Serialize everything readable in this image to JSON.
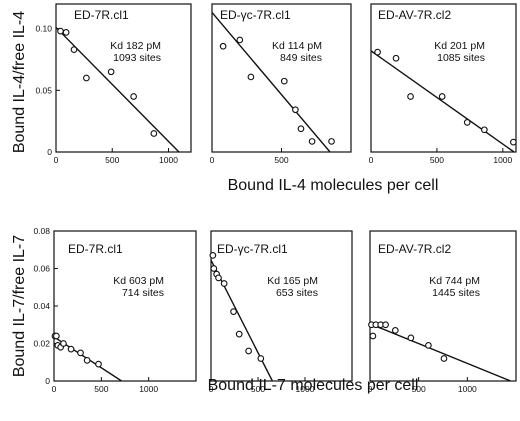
{
  "rows": [
    {
      "ylabel": "Bound IL-4/free IL-4",
      "xlabel": "Bound IL-4 molecules per cell"
    },
    {
      "ylabel": "Bound IL-7/free IL-7",
      "xlabel": "Bound IL-7 molecules per cell"
    }
  ],
  "chart_data": [
    {
      "type": "scatter",
      "title": "ED-7R.cl1",
      "annotation": [
        "Kd 182 pM",
        "1093 sites"
      ],
      "xlim": [
        0,
        1200
      ],
      "ylim": [
        0,
        0.12
      ],
      "xticks": [
        0,
        500,
        1000
      ],
      "yticks": [
        0,
        0.05,
        0.1
      ],
      "ytick_labels": [
        "0",
        "0.05",
        "0.10"
      ],
      "points": [
        [
          40,
          0.098
        ],
        [
          90,
          0.097
        ],
        [
          160,
          0.083
        ],
        [
          270,
          0.06
        ],
        [
          490,
          0.065
        ],
        [
          690,
          0.045
        ],
        [
          870,
          0.015
        ]
      ],
      "fit": [
        [
          0,
          0.101
        ],
        [
          1093,
          0
        ]
      ]
    },
    {
      "type": "scatter",
      "title": "ED-γc-7R.cl1",
      "annotation": [
        "Kd 114 pM",
        "849 sites"
      ],
      "xlim": [
        0,
        1000
      ],
      "ylim": [
        0,
        0.14
      ],
      "xticks": [
        0,
        500
      ],
      "yticks": [],
      "ytick_labels": [],
      "points": [
        [
          80,
          0.1
        ],
        [
          200,
          0.106
        ],
        [
          280,
          0.071
        ],
        [
          520,
          0.067
        ],
        [
          600,
          0.04
        ],
        [
          640,
          0.022
        ],
        [
          720,
          0.01
        ],
        [
          860,
          0.01
        ]
      ],
      "fit": [
        [
          0,
          0.132
        ],
        [
          849,
          0
        ]
      ]
    },
    {
      "type": "scatter",
      "title": "ED-AV-7R.cl2",
      "annotation": [
        "Kd 201 pM",
        "1085 sites"
      ],
      "xlim": [
        0,
        1100
      ],
      "ylim": [
        0,
        0.12
      ],
      "xticks": [
        0,
        500,
        1000
      ],
      "yticks": [],
      "ytick_labels": [],
      "points": [
        [
          50,
          0.081
        ],
        [
          190,
          0.076
        ],
        [
          300,
          0.045
        ],
        [
          540,
          0.045
        ],
        [
          730,
          0.024
        ],
        [
          860,
          0.018
        ],
        [
          1080,
          0.008
        ]
      ],
      "fit": [
        [
          0,
          0.082
        ],
        [
          1085,
          0
        ]
      ]
    },
    {
      "type": "scatter",
      "title": "ED-7R.cl1",
      "annotation": [
        "Kd 603 pM",
        "714 sites"
      ],
      "xlim": [
        0,
        1500
      ],
      "ylim": [
        0,
        0.08
      ],
      "xticks": [
        0,
        500,
        1000
      ],
      "yticks": [
        0,
        0.02,
        0.04,
        0.06,
        0.08
      ],
      "ytick_labels": [
        "0",
        "0.02",
        "0.04",
        "0.06",
        "0.08"
      ],
      "points": [
        [
          10,
          0.024
        ],
        [
          25,
          0.024
        ],
        [
          40,
          0.019
        ],
        [
          70,
          0.018
        ],
        [
          100,
          0.02
        ],
        [
          180,
          0.017
        ],
        [
          280,
          0.015
        ],
        [
          350,
          0.011
        ],
        [
          470,
          0.009
        ]
      ],
      "fit": [
        [
          0,
          0.0235
        ],
        [
          714,
          0
        ]
      ]
    },
    {
      "type": "scatter",
      "title": "ED-γc-7R.cl1",
      "annotation": [
        "Kd 165 pM",
        "653 sites"
      ],
      "xlim": [
        0,
        1500
      ],
      "ylim": [
        0,
        0.08
      ],
      "xticks": [
        0,
        500,
        1000
      ],
      "yticks": [],
      "ytick_labels": [],
      "points": [
        [
          20,
          0.067
        ],
        [
          30,
          0.06
        ],
        [
          60,
          0.057
        ],
        [
          80,
          0.055
        ],
        [
          140,
          0.052
        ],
        [
          240,
          0.037
        ],
        [
          300,
          0.025
        ],
        [
          400,
          0.016
        ],
        [
          530,
          0.012
        ]
      ],
      "fit": [
        [
          0,
          0.0645
        ],
        [
          653,
          0
        ]
      ]
    },
    {
      "type": "scatter",
      "title": "ED-AV-7R.cl2",
      "annotation": [
        "Kd 744 pM",
        "1445 sites"
      ],
      "xlim": [
        0,
        1500
      ],
      "ylim": [
        0,
        0.08
      ],
      "xticks": [
        0,
        500,
        1000
      ],
      "yticks": [],
      "ytick_labels": [],
      "points": [
        [
          15,
          0.03
        ],
        [
          30,
          0.024
        ],
        [
          60,
          0.03
        ],
        [
          110,
          0.03
        ],
        [
          160,
          0.03
        ],
        [
          260,
          0.027
        ],
        [
          420,
          0.023
        ],
        [
          600,
          0.019
        ],
        [
          760,
          0.012
        ]
      ],
      "fit": [
        [
          0,
          0.0305
        ],
        [
          1445,
          0
        ]
      ]
    }
  ]
}
